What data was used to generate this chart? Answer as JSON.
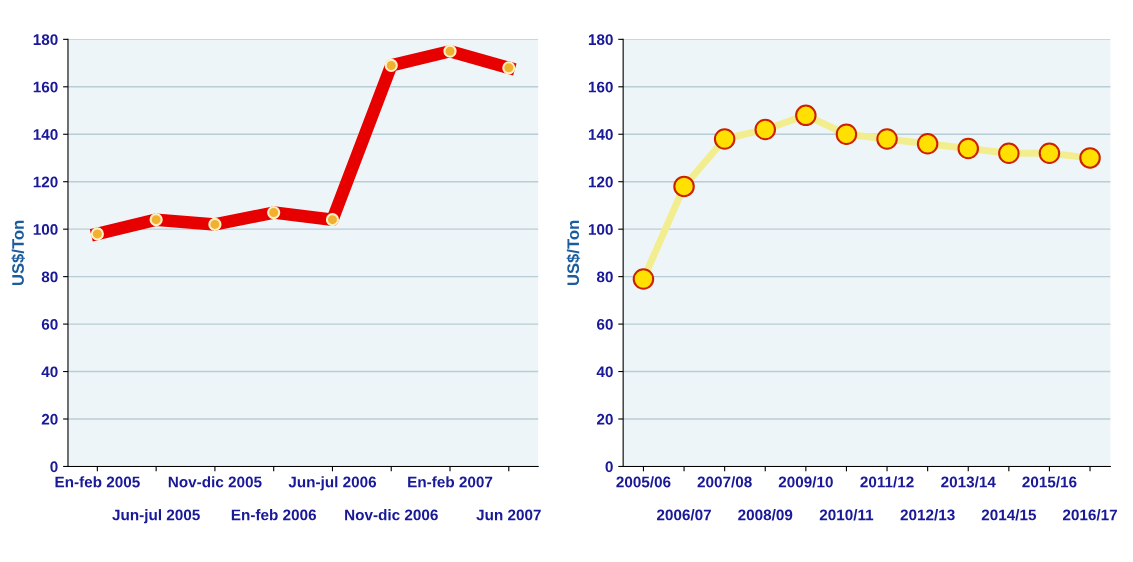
{
  "chart_data": [
    {
      "type": "line",
      "ylabel": "US$/Ton",
      "categories": [
        "En-feb 2005",
        "Jun-jul 2005",
        "Nov-dic 2005",
        "En-feb 2006",
        "Jun-jul 2006",
        "Nov-dic 2006",
        "En-feb 2007",
        "Jun 2007"
      ],
      "series": [
        {
          "color": "#e60000",
          "values": [
            98,
            104,
            102,
            107,
            104,
            169,
            175,
            168
          ]
        }
      ],
      "ylim": [
        0,
        180
      ],
      "yticks": [
        0,
        20,
        40,
        60,
        80,
        100,
        120,
        140,
        160,
        180
      ],
      "grid": "y",
      "marker": "circle"
    },
    {
      "type": "line",
      "ylabel": "US$/Ton",
      "categories": [
        "2005/06",
        "2006/07",
        "2007/08",
        "2008/09",
        "2009/10",
        "2010/11",
        "2011/12",
        "2012/13",
        "2013/14",
        "2014/15",
        "2015/16",
        "2016/17"
      ],
      "series": [
        {
          "color": "#f2ee90",
          "values": [
            79,
            118,
            138,
            142,
            148,
            140,
            138,
            136,
            134,
            132,
            132,
            130
          ]
        }
      ],
      "ylim": [
        0,
        180
      ],
      "yticks": [
        0,
        20,
        40,
        60,
        80,
        100,
        120,
        140,
        160,
        180
      ],
      "grid": "y",
      "marker": "circle"
    }
  ]
}
